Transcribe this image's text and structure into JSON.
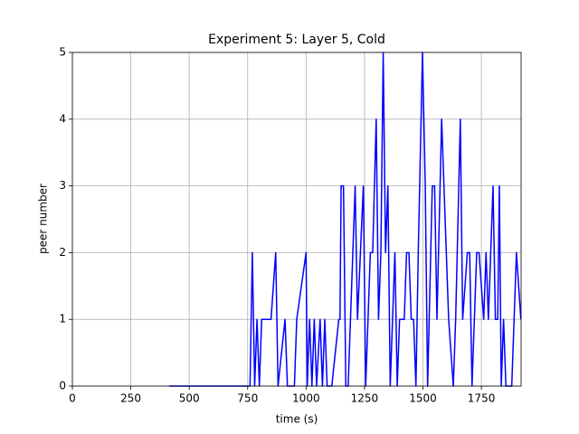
{
  "chart_data": {
    "type": "line",
    "title": "Experiment 5: Layer 5, Cold",
    "xlabel": "time (s)",
    "ylabel": "peer number",
    "x": [
      415,
      760,
      770,
      780,
      790,
      800,
      810,
      850,
      870,
      880,
      910,
      920,
      950,
      960,
      1000,
      1005,
      1015,
      1025,
      1035,
      1045,
      1060,
      1070,
      1080,
      1090,
      1110,
      1140,
      1145,
      1150,
      1160,
      1170,
      1180,
      1210,
      1220,
      1245,
      1255,
      1275,
      1285,
      1300,
      1310,
      1320,
      1330,
      1340,
      1350,
      1360,
      1380,
      1390,
      1400,
      1420,
      1430,
      1440,
      1450,
      1460,
      1470,
      1480,
      1498,
      1510,
      1520,
      1540,
      1550,
      1560,
      1580,
      1600,
      1610,
      1630,
      1640,
      1660,
      1670,
      1690,
      1700,
      1710,
      1730,
      1740,
      1760,
      1770,
      1780,
      1800,
      1810,
      1820,
      1827,
      1835,
      1845,
      1855,
      1880,
      1900,
      1919
    ],
    "values": [
      0,
      0,
      2,
      0,
      1,
      0,
      1,
      1,
      2,
      0,
      1,
      0,
      0,
      1,
      2,
      0,
      1,
      0,
      1,
      0,
      1,
      0,
      1,
      0,
      0,
      1,
      1,
      3,
      3,
      0,
      0,
      3,
      1,
      3,
      0,
      2,
      2,
      4,
      1,
      2,
      5,
      2,
      3,
      0,
      2,
      0,
      1,
      1,
      2,
      2,
      1,
      1,
      0,
      2,
      5,
      3,
      0,
      3,
      3,
      1,
      4,
      2,
      1,
      0,
      1,
      4,
      1,
      2,
      2,
      0,
      2,
      2,
      1,
      2,
      1,
      3,
      1,
      1,
      3,
      0,
      1,
      0,
      0,
      2,
      1
    ],
    "color": "#0000ff",
    "xlim": [
      0,
      1920
    ],
    "xticks": [
      0,
      250,
      500,
      750,
      1000,
      1250,
      1500,
      1750
    ],
    "ylim": [
      0,
      5
    ],
    "yticks": [
      0,
      1,
      2,
      3,
      4,
      5
    ],
    "grid": true
  }
}
